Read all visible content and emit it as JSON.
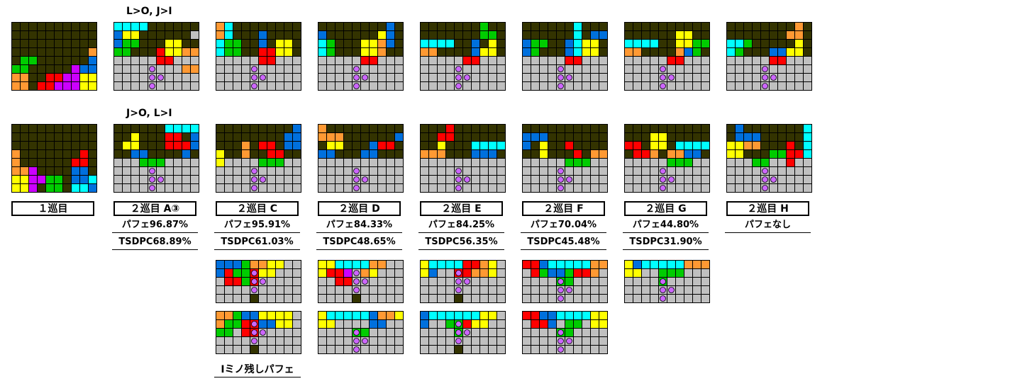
{
  "colors": {
    "0": "#333300",
    "1": "#c0c0c0",
    "I": "#00ffff",
    "O": "#ffff00",
    "T": "#cc00ff",
    "S": "#00cc00",
    "Z": "#ff0000",
    "J": "#0070dd",
    "L": "#ff9933",
    "grid": "#000000",
    "dot": "#cc66ff"
  },
  "row_labels": [
    "L>O, J>I",
    "J>O, L>I"
  ],
  "column_titles": [
    "１巡目",
    "２巡目 A③",
    "２巡目 C",
    "２巡目 D",
    "２巡目 E",
    "２巡目 F",
    "２巡目 G",
    "２巡目 H"
  ],
  "perfect_rates": [
    "",
    "パフェ96.87%",
    "パフェ95.91%",
    "パフェ84.33%",
    "パフェ84.25%",
    "パフェ70.04%",
    "パフェ44.80%",
    "パフェなし"
  ],
  "tsdpc_rates": [
    "",
    "TSDPC68.89%",
    "TSDPC61.03%",
    "TSDPC48.65%",
    "TSDPC56.35%",
    "TSDPC45.48%",
    "TSDPC31.90%",
    ""
  ],
  "footer_note": "Iミノ残しパフェ",
  "boards": [
    {
      "rows": [
        "0000000000",
        "0000000000",
        "0000000000",
        "000000000L",
        "0SS000000J",
        "SS00000TJJ",
        "LL00ZZTTOO",
        "LL0ZZTTTOO"
      ]
    },
    {
      "rows": [
        "IIII000000",
        "JOO000000",
        "JSS000OO00",
        "SS000ZOOLL",
        "11111ZZ111",
        "11111111LL",
        "1111111111",
        "1111111111"
      ]
    },
    {
      "rows": [
        "LI00000000",
        "LI000J0000",
        "ISS00J0OO0",
        "ISS00ZZOO0",
        "11111ZZ111",
        "1111111111",
        "1111111111",
        "1111111111"
      ]
    },
    {
      "rows": [
        "00000000J0",
        "J000000OJ0",
        "IS000OOLJ0",
        "IS000OOL00",
        "11111ZZ111",
        "1111111111",
        "1111111111",
        "1111111111"
      ]
    },
    {
      "rows": [
        "0000000S00",
        "0000000SS0",
        "IIII00J0O0",
        "LL0000JOO0",
        "11111ZZ111",
        "1111111111",
        "1111111111",
        "1111111111"
      ]
    },
    {
      "rows": [
        "000000I000",
        "000000I0JJ",
        "JSS00JIOO0",
        "JS000JIOO0",
        "11111ZZ111",
        "1111111111",
        "1111111111",
        "1111111111"
      ]
    },
    {
      "rows": [
        "0000000000",
        "000000OO00",
        "IIII00OOSS",
        "LL0000LJS0",
        "11111ZZ111",
        "1111111111",
        "1111111111",
        "1111111111"
      ]
    },
    {
      "rows": [
        "00000000L0",
        "0000000LL0",
        "IIS00000O0",
        "IS000JJOO0",
        "11111ZZ111",
        "1111111111",
        "1111111111",
        "1111111111"
      ]
    },
    {
      "rows": [
        "0000000000",
        "0000000000",
        "0000000000",
        "L0000000Z0",
        "L000000ZZ0",
        "LLT0000JJ0",
        "OOTTSS0JJI",
        "OOT0SS0IIJ"
      ]
    },
    {
      "rows": [
        "000000IIII",
        "00O000ZZ0J",
        "0OO000ZZZJ",
        "00JJ0000J0",
        "111SSS1111",
        "1111111111",
        "1111111111",
        "1111111111"
      ]
    },
    {
      "rows": [
        "000000000J",
        "00000000JJ",
        "000L0ZZ0JJ",
        "O00L00ZZ00",
        "O1111SSS11",
        "1111111111",
        "1111111111",
        "1111111111"
      ]
    },
    {
      "rows": [
        "L000000000",
        "LLL000000J",
        "0OO000JZZ0",
        "JJ000JJ000",
        "11111111111",
        "1111111111",
        "1111111111",
        "1111111111"
      ]
    },
    {
      "rows": [
        "000Z000000",
        "00ZZ000000",
        "00O000IIII",
        "LLL000JJJ0",
        "11111111111",
        "1111111111",
        "1111111111",
        "1111111111"
      ]
    },
    {
      "rows": [
        "0000000000",
        "JJJ0000000",
        "J0O00Z0000",
        "00O000Z0LL",
        "11111SSS11",
        "1111111111",
        "1111111111",
        "1111111111"
      ]
    },
    {
      "rows": [
        "0000000000",
        "000OO00000",
        "ZZ0OO0IIII",
        "0ZZL0LLJJ0",
        "11111SSS11",
        "1111111111",
        "1111111111",
        "1111111111"
      ]
    },
    {
      "rows": [
        "0J0000000I",
        "0JJJ00000I",
        "OOLL000Z0I",
        "OO000SSZZI",
        "111SS11Z11",
        "1111111111",
        "1111111111",
        "1111111111"
      ]
    },
    {
      "rows": [
        "JJJSLLOO11",
        "JZSSZOO111",
        "1ZZSZ11111",
        "1111111111",
        "1111111111"
      ]
    },
    {
      "rows": [
        "OOIIIILL11",
        "OZZT1LO111",
        "11ZZ111111",
        "1111111111",
        "1111111111"
      ]
    },
    {
      "rows": [
        "OIIIIZZLO1",
        "OJ11ZZLLO1",
        "111111111",
        "1111111111",
        "1111111111"
      ]
    },
    {
      "rows": [
        "ZZJIIIIILL",
        "1ZSJJSZZL1",
        "1111SS1111",
        "1111111111",
        "1111111111"
      ]
    },
    {
      "rows": [
        "OJIIIIILLL",
        "OO11SSS111",
        "1111S11111",
        "1111111111",
        "1111111111"
      ]
    },
    {
      "rows": [
        "LLSJJOOOO1",
        "LSSZZJJOO1",
        "SS1ZZ11111",
        "1111111111",
        "1111111111"
      ]
    },
    {
      "rows": [
        "OIIIIIJLLO",
        "OO1111JJ11",
        "1111SS1111",
        "1111111111",
        "1111111111"
      ]
    },
    {
      "rows": [
        "JIIIIIIOO1",
        "J11SSZOO11",
        "1111S11111",
        "1111111111",
        "1111111111"
      ]
    },
    {
      "rows": [
        "ZZJJIIIIOO",
        "1ZZJ1SS1OO",
        "1111SS1111",
        "1111111111",
        "1111111111"
      ]
    }
  ]
}
